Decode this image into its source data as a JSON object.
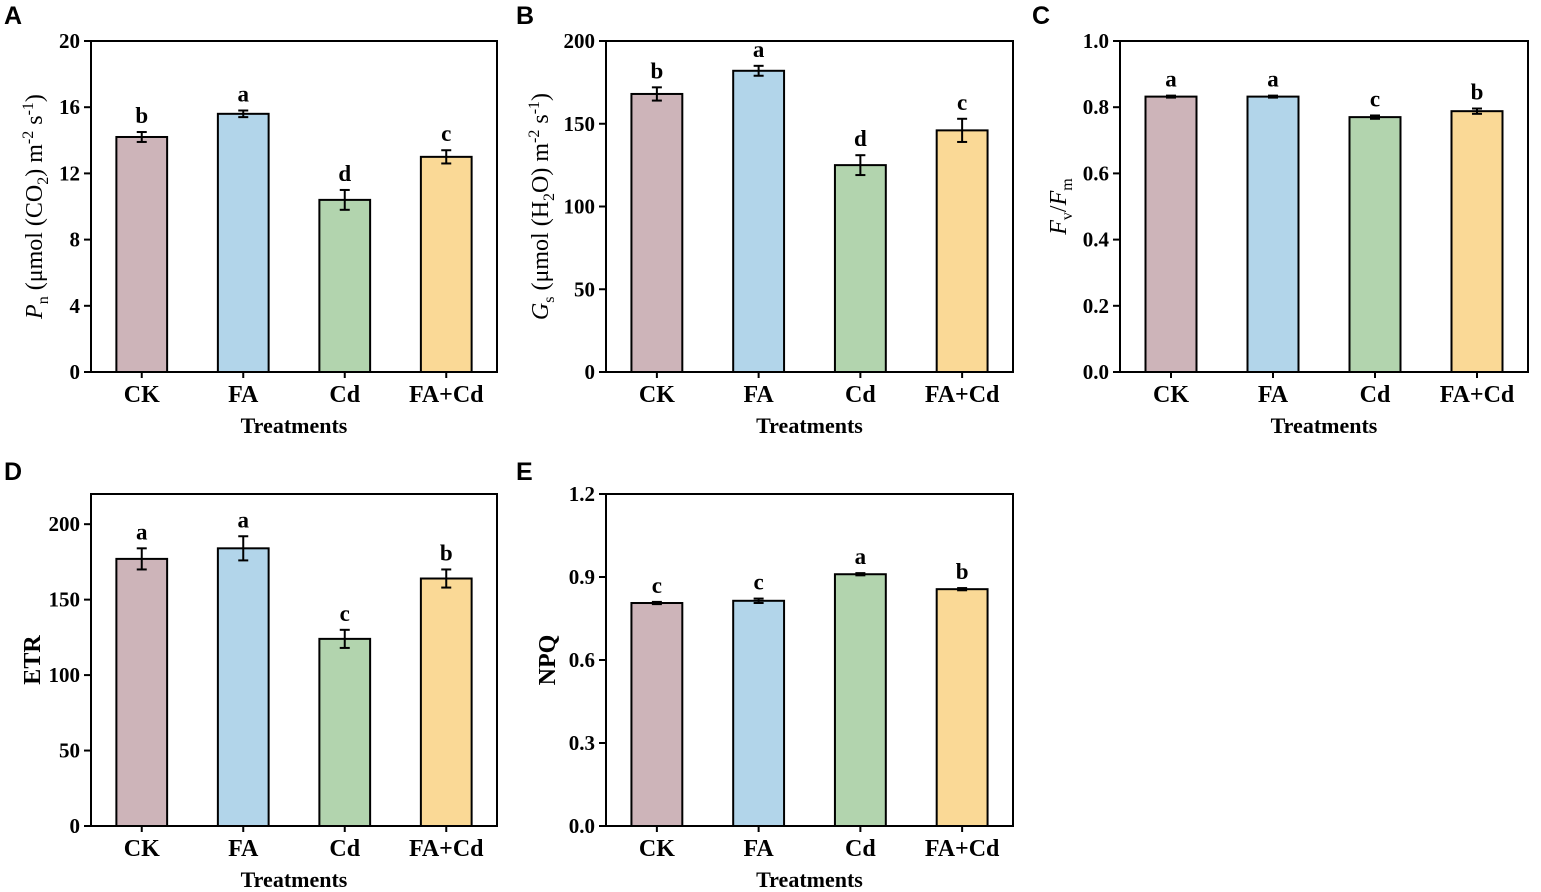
{
  "colors": {
    "CK": "#cdb4b9",
    "FA": "#b2d5ea",
    "Cd": "#b2d4ae",
    "FA+Cd": "#fad996"
  },
  "chart_data": [
    {
      "type": "bar",
      "panel": "A",
      "categories": [
        "CK",
        "FA",
        "Cd",
        "FA+Cd"
      ],
      "values": [
        14.2,
        15.6,
        10.4,
        13.0
      ],
      "errors": [
        0.3,
        0.2,
        0.6,
        0.4
      ],
      "significance": [
        "b",
        "a",
        "d",
        "c"
      ],
      "ylim": [
        0,
        20
      ],
      "yticks": [
        0,
        4,
        8,
        12,
        16,
        20
      ],
      "tick_decimals": 0,
      "xlabel": "Treatments",
      "ylabel": {
        "sym": "P",
        "sub": "n",
        "unit_pre": " (μmol (CO",
        "unit_sub": "2",
        "unit_mid": ") m",
        "sup1": "-2",
        "unit_post": " s",
        "sup2": "-1",
        "close": ")"
      }
    },
    {
      "type": "bar",
      "panel": "B",
      "categories": [
        "CK",
        "FA",
        "Cd",
        "FA+Cd"
      ],
      "values": [
        168,
        182,
        125,
        146
      ],
      "errors": [
        4,
        3,
        6,
        7
      ],
      "significance": [
        "b",
        "a",
        "d",
        "c"
      ],
      "ylim": [
        0,
        200
      ],
      "yticks": [
        0,
        50,
        100,
        150,
        200
      ],
      "tick_decimals": 0,
      "xlabel": "Treatments",
      "ylabel": {
        "sym": "G",
        "sub": "s",
        "unit_pre": " (μmol (H",
        "unit_sub": "2",
        "unit_mid": "O) m",
        "sup1": "-2",
        "unit_post": " s",
        "sup2": "-1",
        "close": ")"
      }
    },
    {
      "type": "bar",
      "panel": "C",
      "categories": [
        "CK",
        "FA",
        "Cd",
        "FA+Cd"
      ],
      "values": [
        0.832,
        0.832,
        0.77,
        0.788
      ],
      "errors": [
        0.003,
        0.003,
        0.005,
        0.008
      ],
      "significance": [
        "a",
        "a",
        "c",
        "b"
      ],
      "ylim": [
        0,
        1.0
      ],
      "yticks": [
        0.0,
        0.2,
        0.4,
        0.6,
        0.8,
        1.0
      ],
      "tick_decimals": 1,
      "xlabel": "Treatments",
      "ylabel": {
        "sym1": "F",
        "sub1": "v",
        "slash": "/",
        "sym2": "F",
        "sub2": "m"
      }
    },
    {
      "type": "bar",
      "panel": "D",
      "categories": [
        "CK",
        "FA",
        "Cd",
        "FA+Cd"
      ],
      "values": [
        177,
        184,
        124,
        164
      ],
      "errors": [
        7,
        8,
        6,
        6
      ],
      "significance": [
        "a",
        "a",
        "c",
        "b"
      ],
      "ylim": [
        0,
        220
      ],
      "yticks": [
        0,
        50,
        100,
        150,
        200
      ],
      "tick_decimals": 0,
      "xlabel": "Treatments",
      "ylabel": {
        "text": "ETR"
      }
    },
    {
      "type": "bar",
      "panel": "E",
      "categories": [
        "CK",
        "FA",
        "Cd",
        "FA+Cd"
      ],
      "values": [
        0.806,
        0.814,
        0.91,
        0.856
      ],
      "errors": [
        0.004,
        0.008,
        0.004,
        0.004
      ],
      "significance": [
        "c",
        "c",
        "a",
        "b"
      ],
      "ylim": [
        0,
        1.2
      ],
      "yticks": [
        0.0,
        0.3,
        0.6,
        0.9,
        1.2
      ],
      "tick_decimals": 1,
      "xlabel": "Treatments",
      "ylabel": {
        "text": "NPQ"
      }
    }
  ]
}
